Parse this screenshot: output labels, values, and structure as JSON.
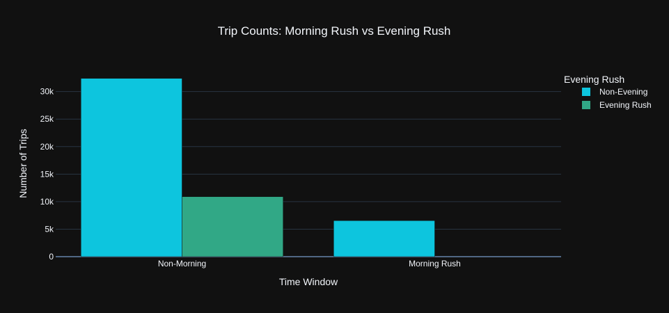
{
  "chart_data": {
    "type": "bar",
    "title": "Trip Counts: Morning Rush vs Evening Rush",
    "xlabel": "Time Window",
    "ylabel": "Number of Trips",
    "categories": [
      "Non-Morning",
      "Morning Rush"
    ],
    "series": [
      {
        "name": "Non-Evening",
        "color": "#0dc5de",
        "values": [
          32400,
          6550
        ]
      },
      {
        "name": "Evening Rush",
        "color": "#31a886",
        "values": [
          10900,
          0
        ]
      }
    ],
    "ylim": [
      0,
      34000
    ],
    "yticks": [
      0,
      5000,
      10000,
      15000,
      20000,
      25000,
      30000
    ],
    "ytick_labels": [
      "0",
      "5k",
      "10k",
      "15k",
      "20k",
      "25k",
      "30k"
    ],
    "legend": {
      "title": "Evening Rush",
      "position": "top-right"
    },
    "grid": true,
    "colors": {
      "background": "#111111",
      "grid": "#283442",
      "text": "#f2f5fa"
    }
  }
}
